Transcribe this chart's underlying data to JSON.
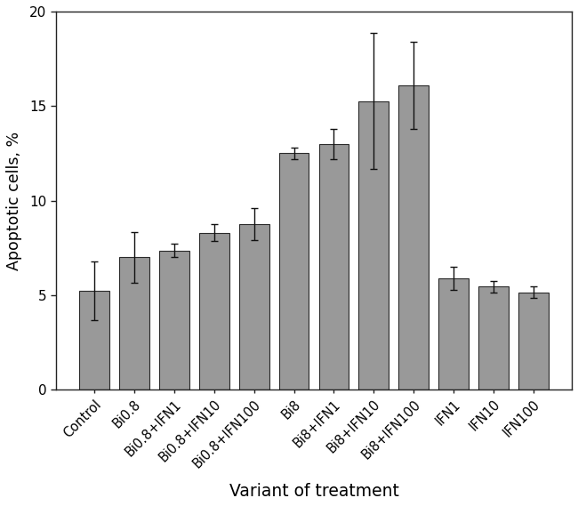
{
  "categories": [
    "Control",
    "Bi0.8",
    "Bi0.8+IFN1",
    "Bi0.8+IFN10",
    "Bi0.8+IFN100",
    "Bi8",
    "Bi8+IFN1",
    "Bi8+IFN10",
    "Bi8+IFN100",
    "IFN1",
    "IFN10",
    "IFN100"
  ],
  "values": [
    5.25,
    7.0,
    7.35,
    8.3,
    8.75,
    12.5,
    13.0,
    15.25,
    16.1,
    5.9,
    5.45,
    5.15
  ],
  "errors": [
    1.55,
    1.35,
    0.35,
    0.45,
    0.85,
    0.3,
    0.8,
    3.6,
    2.3,
    0.6,
    0.32,
    0.3
  ],
  "bar_color": "#999999",
  "bar_edgecolor": "#2a2a2a",
  "ylabel": "Apoptotic cells, %",
  "xlabel": "Variant of treatment",
  "ylim": [
    0,
    20
  ],
  "yticks": [
    0,
    5,
    10,
    15,
    20
  ],
  "background_color": "#ffffff",
  "bar_width": 0.75,
  "capsize": 3,
  "elinewidth": 1.0,
  "ecapthick": 1.0
}
